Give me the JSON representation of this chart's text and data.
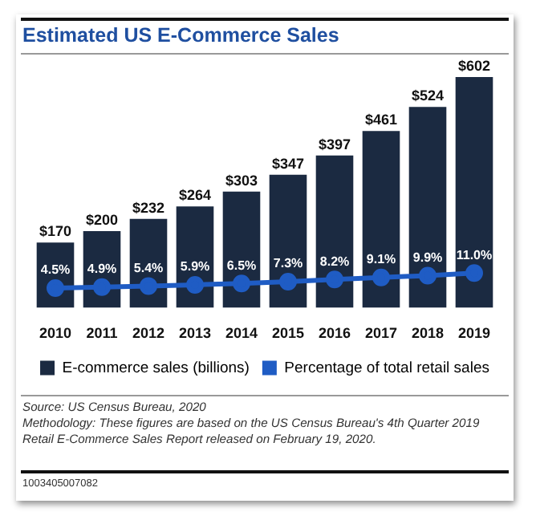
{
  "chart_data": {
    "type": "bar",
    "title": "Estimated US E-Commerce Sales",
    "categories": [
      "2010",
      "2011",
      "2012",
      "2013",
      "2014",
      "2015",
      "2016",
      "2017",
      "2018",
      "2019"
    ],
    "series": [
      {
        "name": "E-commerce sales (billions)",
        "color": "#1b2a41",
        "values": [
          170,
          200,
          232,
          264,
          303,
          347,
          397,
          461,
          524,
          602
        ],
        "value_labels": [
          "$170",
          "$200",
          "$232",
          "$264",
          "$303",
          "$347",
          "$397",
          "$461",
          "$524",
          "$602"
        ]
      },
      {
        "name": "Percentage of total retail sales",
        "type": "line",
        "axis": "y2",
        "color": "#1f5cc4",
        "marker": "circle",
        "values": [
          4.5,
          4.9,
          5.4,
          5.9,
          6.5,
          7.3,
          8.2,
          9.1,
          9.9,
          11.0
        ],
        "value_labels": [
          "4.5%",
          "4.9%",
          "5.4%",
          "5.9%",
          "6.5%",
          "7.3%",
          "8.2%",
          "9.1%",
          "9.9%",
          "11.0%"
        ]
      }
    ],
    "y2lim": [
      -4,
      96
    ],
    "tick_labels": "x",
    "grid": false,
    "legend": "bottom",
    "annotations": [
      "Source: US Census Bureau, 2020",
      "Methodology: These figures are based on the US Census Bureau's 4th Quarter 2019 Retail E-Commerce Sales Report released on February 19, 2020.",
      "1003405007082"
    ]
  }
}
